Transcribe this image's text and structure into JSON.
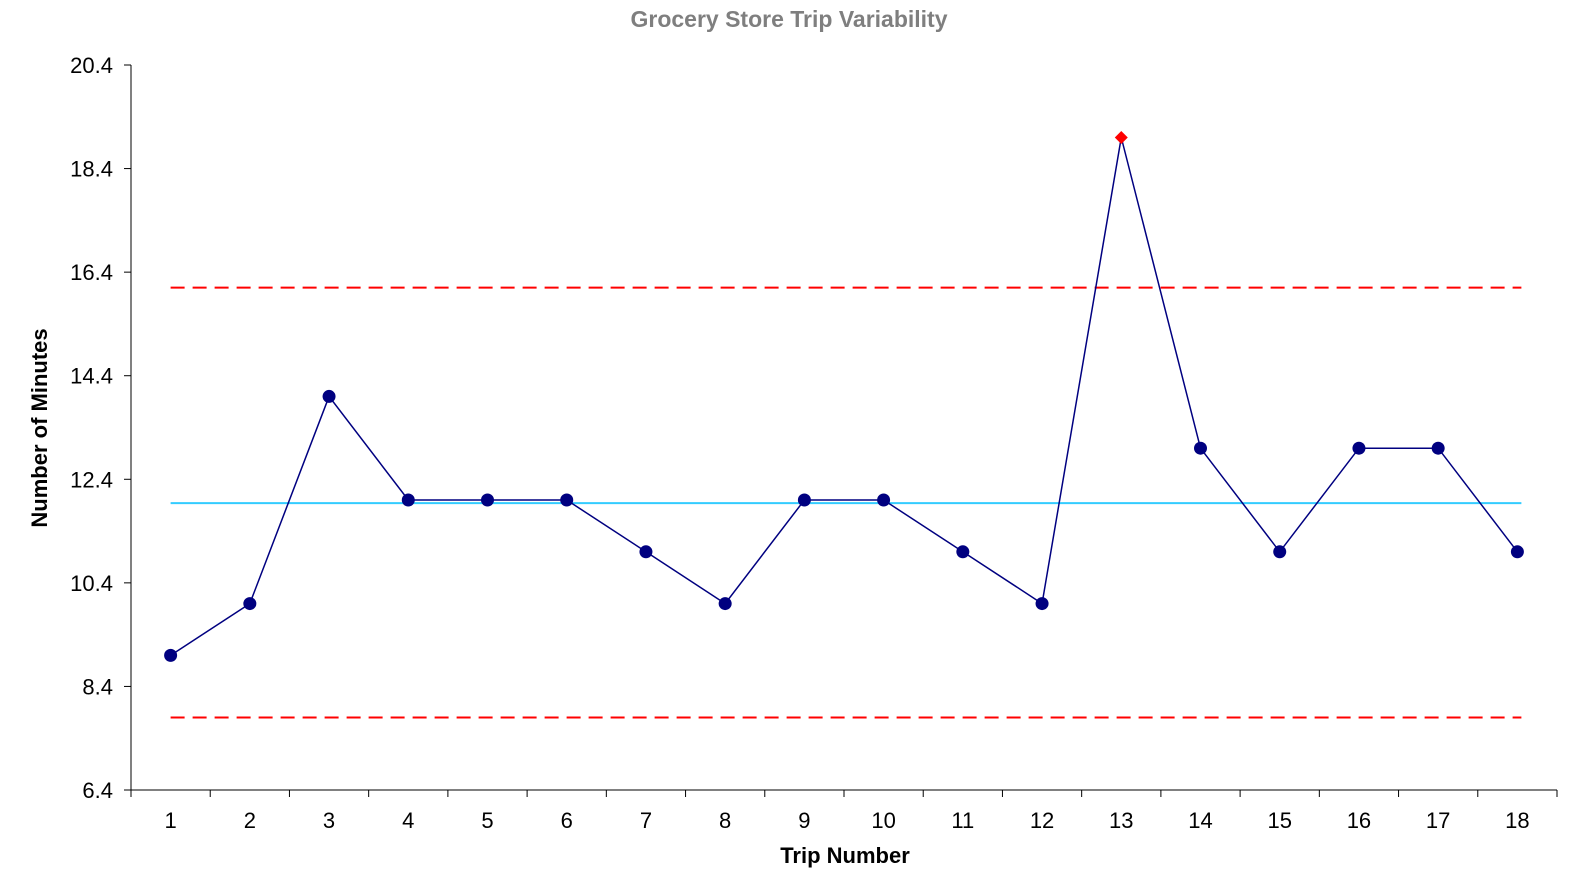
{
  "chart_data": {
    "type": "line",
    "title": "Grocery Store Trip Variability",
    "xlabel": "Trip Number",
    "ylabel": "Number of Minutes",
    "categories": [
      "1",
      "2",
      "3",
      "4",
      "5",
      "6",
      "7",
      "8",
      "9",
      "10",
      "11",
      "12",
      "13",
      "14",
      "15",
      "16",
      "17",
      "18"
    ],
    "series": [
      {
        "values": [
          9,
          10,
          14,
          12,
          12,
          12,
          11,
          10,
          12,
          12,
          11,
          10,
          19,
          13,
          11,
          13,
          13,
          11
        ]
      }
    ],
    "yticks": [
      "6.4",
      "8.4",
      "10.4",
      "12.4",
      "14.4",
      "16.4",
      "18.4",
      "20.4"
    ],
    "ylim": [
      6.4,
      20.4
    ],
    "center_line": 11.94,
    "upper_control_limit": 16.1,
    "lower_control_limit": 7.8,
    "out_of_control_points": [
      13
    ],
    "grid": false,
    "legend": "none",
    "colors": {
      "series": "#000080",
      "center_line": "#33ccff",
      "control_limits": "#ff0000",
      "out_of_control_marker": "#ff0000",
      "title": "#7f7f7f",
      "axis": "#000000"
    }
  }
}
